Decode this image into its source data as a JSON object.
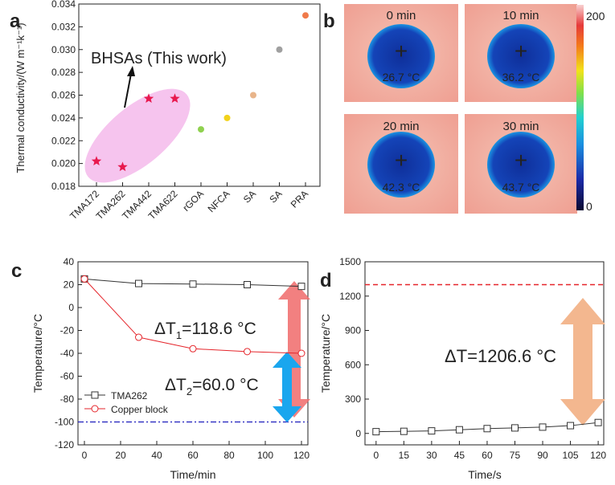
{
  "panel_labels": {
    "a": "a",
    "b": "b",
    "c": "c",
    "d": "d"
  },
  "colors": {
    "star": "#e8194e",
    "ellipse": "#f6c4ee",
    "tma_line": "#333333",
    "copper_line": "#e5252b",
    "baseline_c": "#1d1dbd",
    "baseline_d": "#e5252b",
    "arrow_red": "#f06a6a",
    "arrow_blue": "#1aa6ee",
    "arrow_orange": "#f3b78f",
    "thermal_bg": "#f2b3a6",
    "thermal_cold": "#1238a8"
  },
  "chart_data": [
    {
      "id": "a",
      "type": "scatter",
      "ylabel": "Thermal conductivity/(W m⁻¹k⁻¹)",
      "ylim": [
        0.018,
        0.034
      ],
      "yticks": [
        "0.018",
        "0.020",
        "0.022",
        "0.024",
        "0.026",
        "0.028",
        "0.030",
        "0.032",
        "0.034"
      ],
      "categories": [
        "TMA172",
        "TMA262",
        "TMA442",
        "TMA622",
        "rGOA",
        "NFCA",
        "SA",
        "SA",
        "PRA"
      ],
      "points": [
        {
          "category": "TMA172",
          "value": 0.0202,
          "marker": "star",
          "color": "#e8194e"
        },
        {
          "category": "TMA262",
          "value": 0.0197,
          "marker": "star",
          "color": "#e8194e"
        },
        {
          "category": "TMA442",
          "value": 0.0257,
          "marker": "star",
          "color": "#e8194e"
        },
        {
          "category": "TMA622",
          "value": 0.0257,
          "marker": "star",
          "color": "#e8194e"
        },
        {
          "category": "rGOA",
          "value": 0.023,
          "marker": "dot",
          "color": "#8fd14f"
        },
        {
          "category": "NFCA",
          "value": 0.024,
          "marker": "dot",
          "color": "#f2d21b"
        },
        {
          "category": "SA",
          "value": 0.026,
          "marker": "dot",
          "color": "#e8b48a"
        },
        {
          "category": "SA",
          "value": 0.03,
          "marker": "dot",
          "color": "#a0a0a0"
        },
        {
          "category": "PRA",
          "value": 0.033,
          "marker": "dot",
          "color": "#f07a4a"
        }
      ],
      "annotation": "BHSAs (This work)"
    },
    {
      "id": "b",
      "type": "heatmap",
      "frames": [
        {
          "time": "0 min",
          "temperature": "26.7 °C"
        },
        {
          "time": "10 min",
          "temperature": "36.2 °C"
        },
        {
          "time": "20 min",
          "temperature": "42.3 °C"
        },
        {
          "time": "30 min",
          "temperature": "43.7 °C"
        }
      ],
      "colorbar": {
        "max": "200",
        "min": "0"
      }
    },
    {
      "id": "c",
      "type": "line",
      "xlabel": "Time/min",
      "ylabel": "Temperature/°C",
      "xlim": [
        0,
        120
      ],
      "ylim": [
        -120,
        40
      ],
      "xticks": [
        "0",
        "20",
        "40",
        "60",
        "80",
        "100",
        "120"
      ],
      "yticks": [
        "-120",
        "-100",
        "-80",
        "-60",
        "-40",
        "-20",
        "0",
        "20",
        "40"
      ],
      "series": [
        {
          "name": "TMA262",
          "x": [
            0,
            30,
            60,
            90,
            120
          ],
          "y": [
            25,
            21,
            20.5,
            20,
            18.5
          ],
          "color": "#333333",
          "marker": "square"
        },
        {
          "name": "Copper block",
          "x": [
            0,
            30,
            60,
            90,
            120
          ],
          "y": [
            25,
            -26,
            -36,
            -38.5,
            -40
          ],
          "color": "#e5252b",
          "marker": "circle"
        }
      ],
      "reference_line": {
        "y": -100
      },
      "annotations": [
        {
          "base": "ΔT",
          "sub": "1",
          "value": "=118.6 °C"
        },
        {
          "base": "ΔT",
          "sub": "2",
          "value": "=60.0 °C"
        }
      ]
    },
    {
      "id": "d",
      "type": "line",
      "xlabel": "Time/s",
      "ylabel": "Temperature/°C",
      "xlim": [
        -6,
        123
      ],
      "ylim": [
        -100,
        1500
      ],
      "xticks": [
        "0",
        "15",
        "30",
        "45",
        "60",
        "75",
        "90",
        "105",
        "120"
      ],
      "yticks": [
        "0",
        "300",
        "600",
        "900",
        "1200",
        "1500"
      ],
      "series": [
        {
          "name": "TMA262",
          "x": [
            0,
            15,
            30,
            45,
            60,
            75,
            90,
            105,
            120
          ],
          "y": [
            15,
            18,
            22,
            32,
            42,
            48,
            55,
            68,
            95
          ],
          "color": "#333333",
          "marker": "square"
        }
      ],
      "reference_line": {
        "y": 1300
      },
      "annotation": "ΔT=1206.6 °C"
    }
  ]
}
